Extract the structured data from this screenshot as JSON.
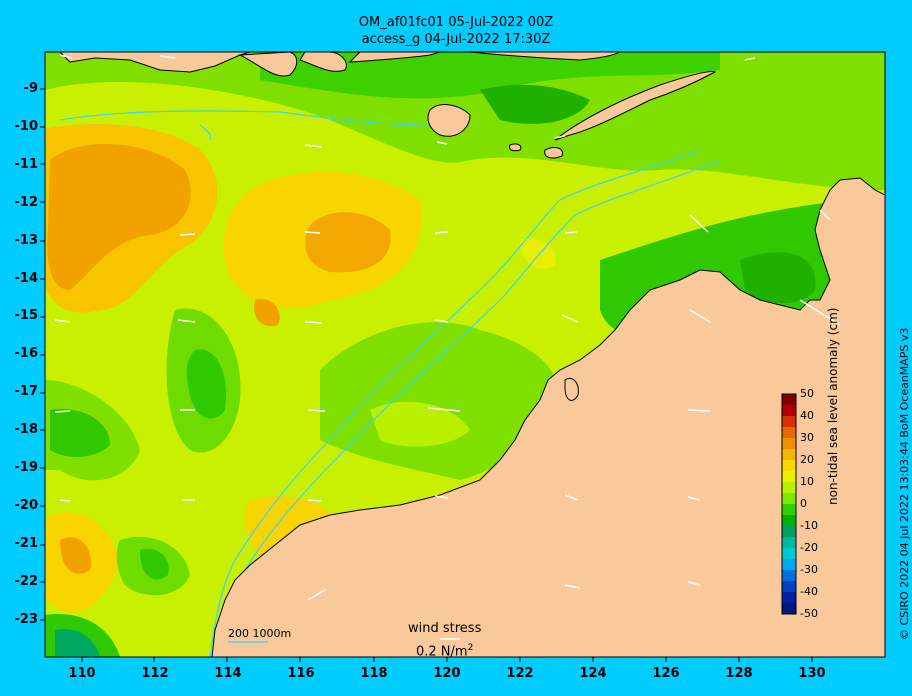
{
  "title_line1": "OM_af01fc01 05-Jul-2022 00Z",
  "title_line2": "access_g 04-Jul-2022 17:30Z",
  "lat_ticks": [
    "-9",
    "-10",
    "-11",
    "-12",
    "-13",
    "-14",
    "-15",
    "-16",
    "-17",
    "-18",
    "-19",
    "-20",
    "-21",
    "-22",
    "-23"
  ],
  "lon_ticks": [
    "110",
    "112",
    "114",
    "116",
    "118",
    "120",
    "122",
    "124",
    "126",
    "128",
    "130"
  ],
  "colorbar": {
    "title": "non-tidal sea level anomaly (cm)",
    "labels": [
      "50",
      "40",
      "30",
      "20",
      "10",
      "0",
      "-10",
      "-20",
      "-30",
      "-40",
      "-50"
    ],
    "colors": [
      "#800000",
      "#b00000",
      "#d83000",
      "#e86800",
      "#f09000",
      "#f0b800",
      "#f8d800",
      "#e8f000",
      "#b8f000",
      "#80e800",
      "#30d000",
      "#00b000",
      "#00a060",
      "#00b8a0",
      "#00c8d0",
      "#00a8f0",
      "#0070e0",
      "#0040c0",
      "#0020a0",
      "#001880"
    ]
  },
  "legend": {
    "wind_stress_label": "wind stress",
    "wind_stress_value": "0.2 N/m",
    "wind_stress_exp": "2",
    "depth_contours": "200  1000m"
  },
  "credit": "© CSIRO 2022   04 Jul 2022 13:03:44 BoM OceanMAPS v3",
  "colors": {
    "land": "#f9c99b",
    "ocean_base": "#c8f000",
    "frame": "#00ccff"
  }
}
